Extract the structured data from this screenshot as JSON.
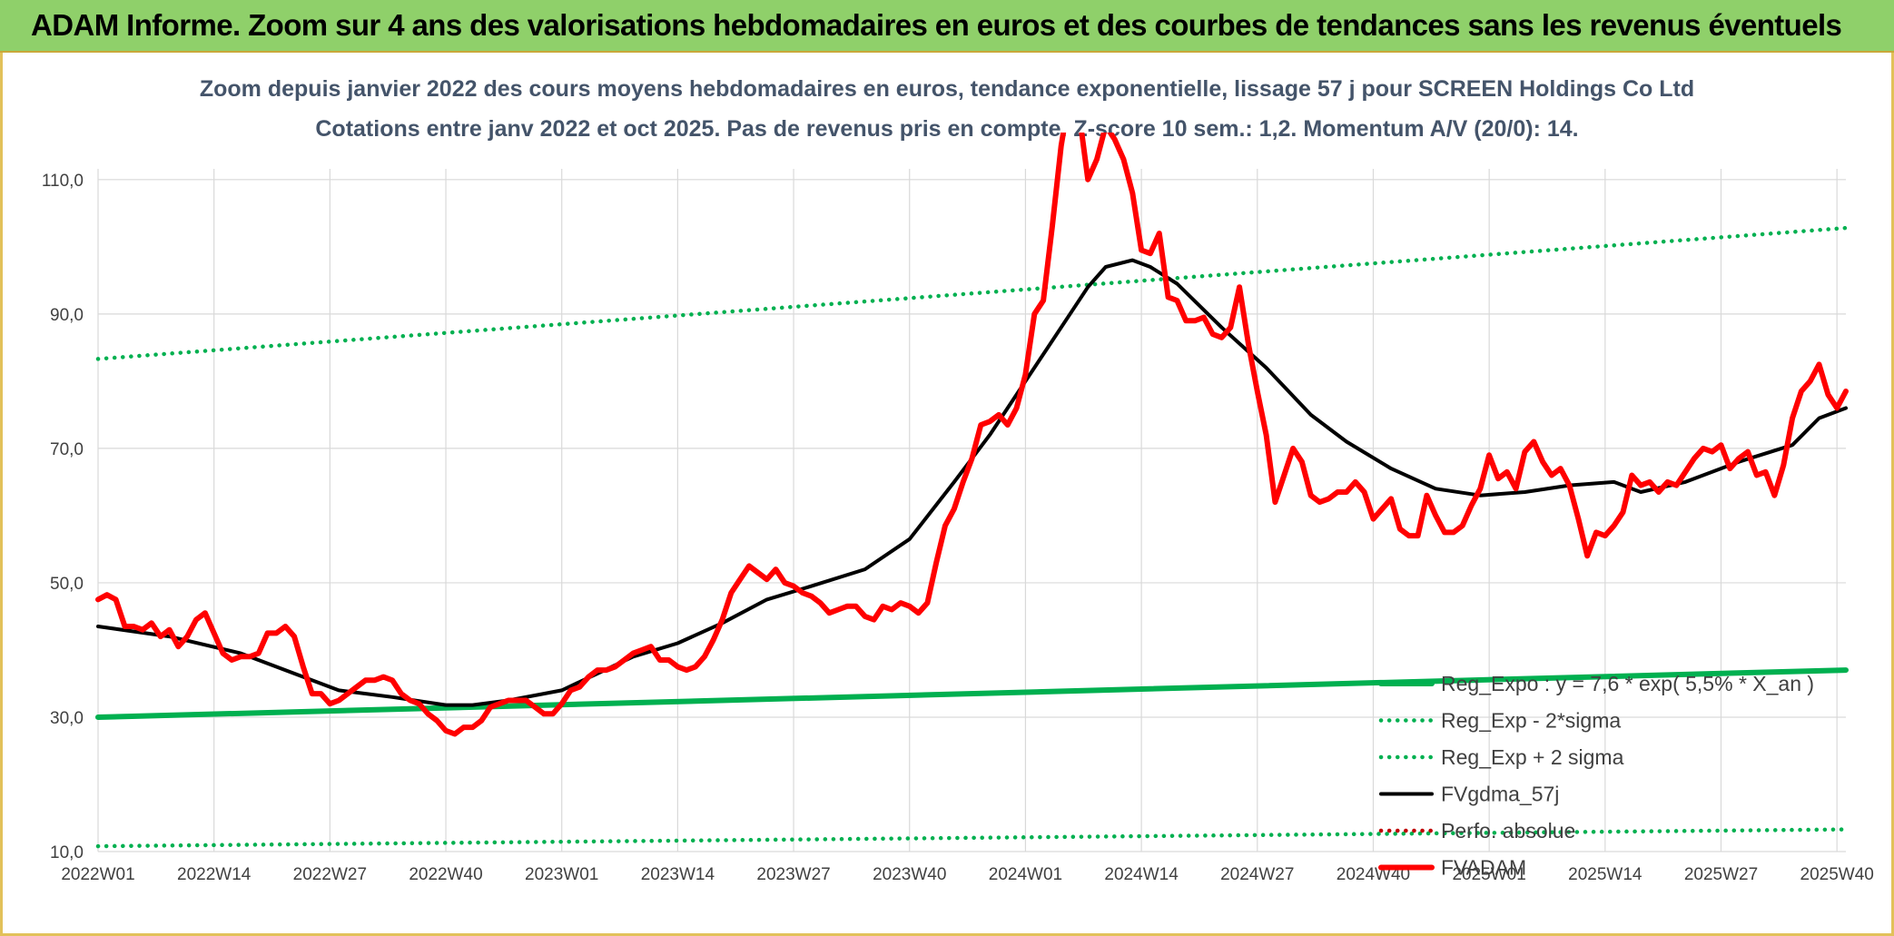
{
  "header": {
    "title": "ADAM Informe. Zoom sur 4 ans des valorisations hebdomadaires en euros et des courbes de tendances sans les revenus éventuels"
  },
  "colors": {
    "banner": "#8fd06a",
    "reg_expo": "#00b050",
    "sigma_bands": "#00b050",
    "fvgdma": "#000000",
    "fvadam": "#ff0000",
    "perfo": "#c00000",
    "grid": "#d9d9d9"
  },
  "chart_data": {
    "type": "line",
    "title_line1": "Zoom depuis janvier 2022 des cours moyens hebdomadaires en euros, tendance exponentielle, lissage 57 j pour SCREEN Holdings Co Ltd",
    "title_line2": "Cotations entre janv 2022 et oct 2025. Pas de revenus pris en compte. Z-score 10 sem.: 1,2. Momentum A/V (20/0): 14.",
    "xlabel": "",
    "ylabel": "",
    "ylim": [
      10,
      110
    ],
    "xlim": [
      0,
      196
    ],
    "y_ticks": [
      10,
      30,
      50,
      70,
      90,
      110
    ],
    "y_tick_labels": [
      "10,0",
      "30,0",
      "50,0",
      "70,0",
      "90,0",
      "110,0"
    ],
    "x_ticks": [
      0,
      13,
      26,
      39,
      52,
      65,
      78,
      91,
      104,
      117,
      130,
      143,
      156,
      169,
      182,
      195
    ],
    "x_tick_labels": [
      "2022W01",
      "2022W14",
      "2022W27",
      "2022W40",
      "2023W01",
      "2023W14",
      "2023W27",
      "2023W40",
      "2024W01",
      "2024W14",
      "2024W27",
      "2024W40",
      "2025W01",
      "2025W14",
      "2025W27",
      "2025W40"
    ],
    "series": [
      {
        "name": "Reg_Expo : y = 7,6 * exp( 5,5% *  X_an )",
        "style": "solid-thick",
        "color": "#00b050",
        "x": [
          0,
          196
        ],
        "values": [
          30.0,
          37.0
        ]
      },
      {
        "name": "Reg_Exp - 2*sigma",
        "style": "dotted",
        "color": "#00b050",
        "x": [
          0,
          196
        ],
        "values": [
          10.8,
          13.3
        ]
      },
      {
        "name": "Reg_Exp + 2 sigma",
        "style": "dotted",
        "color": "#00b050",
        "x": [
          0,
          196
        ],
        "values": [
          83.3,
          102.8
        ]
      },
      {
        "name": "FVgdma_57j",
        "style": "solid",
        "color": "#000000",
        "x": [
          0,
          8,
          16,
          22,
          27,
          33,
          39,
          42,
          46,
          52,
          56,
          60,
          65,
          70,
          75,
          80,
          86,
          91,
          96,
          100,
          104,
          108,
          111,
          113,
          116,
          118,
          121,
          126,
          131,
          136,
          140,
          145,
          150,
          155,
          160,
          165,
          170,
          173,
          178,
          184,
          190,
          193,
          196
        ],
        "values": [
          43.5,
          42.0,
          39.5,
          36.5,
          34.0,
          33.0,
          31.8,
          31.8,
          32.5,
          34.0,
          36.5,
          39.0,
          41.0,
          44.0,
          47.5,
          49.5,
          52.0,
          56.5,
          65.0,
          72.0,
          80.0,
          88.0,
          94.0,
          97.0,
          98.0,
          97.0,
          94.5,
          88.0,
          82.0,
          75.0,
          71.0,
          67.0,
          64.0,
          63.0,
          63.5,
          64.5,
          65.0,
          63.5,
          65.0,
          68.0,
          70.5,
          74.5,
          76.0
        ]
      },
      {
        "name": "Perfo. absolue",
        "style": "dotted",
        "color": "#c00000",
        "x": [],
        "values": []
      },
      {
        "name": "FVADAM",
        "style": "solid-thick",
        "color": "#ff0000",
        "x": [
          0,
          1,
          2,
          3,
          4,
          5,
          6,
          7,
          8,
          9,
          10,
          11,
          12,
          13,
          14,
          15,
          16,
          17,
          18,
          19,
          20,
          21,
          22,
          23,
          24,
          25,
          26,
          27,
          28,
          29,
          30,
          31,
          32,
          33,
          34,
          35,
          36,
          37,
          38,
          39,
          40,
          41,
          42,
          43,
          44,
          45,
          46,
          47,
          48,
          49,
          50,
          51,
          52,
          53,
          54,
          55,
          56,
          57,
          58,
          59,
          60,
          61,
          62,
          63,
          64,
          65,
          66,
          67,
          68,
          69,
          70,
          71,
          72,
          73,
          74,
          75,
          76,
          77,
          78,
          79,
          80,
          81,
          82,
          83,
          84,
          85,
          86,
          87,
          88,
          89,
          90,
          91,
          92,
          93,
          94,
          95,
          96,
          97,
          98,
          99,
          100,
          101,
          102,
          103,
          104,
          105,
          106,
          107,
          108,
          109,
          110,
          111,
          112,
          113,
          114,
          115,
          116,
          117,
          118,
          119,
          120,
          121,
          122,
          123,
          124,
          125,
          126,
          127,
          128,
          129,
          130,
          131,
          132,
          133,
          134,
          135,
          136,
          137,
          138,
          139,
          140,
          141,
          142,
          143,
          144,
          145,
          146,
          147,
          148,
          149,
          150,
          151,
          152,
          153,
          154,
          155,
          156,
          157,
          158,
          159,
          160,
          161,
          162,
          163,
          164,
          165,
          166,
          167,
          168,
          169,
          170,
          171,
          172,
          173,
          174,
          175,
          176,
          177,
          178,
          179,
          180,
          181,
          182,
          183,
          184,
          185,
          186,
          187,
          188,
          189,
          190,
          191,
          192,
          193,
          194,
          195,
          196
        ],
        "values": [
          47.5,
          48.2,
          47.5,
          43.5,
          43.5,
          43.0,
          44.0,
          42.0,
          43.0,
          40.5,
          42.0,
          44.5,
          45.5,
          42.5,
          39.5,
          38.5,
          39.0,
          39.0,
          39.5,
          42.5,
          42.5,
          43.5,
          42.0,
          37.5,
          33.5,
          33.5,
          32.0,
          32.5,
          33.5,
          34.5,
          35.5,
          35.5,
          36.0,
          35.5,
          33.5,
          32.5,
          32.0,
          30.5,
          29.5,
          28.0,
          27.5,
          28.5,
          28.5,
          29.5,
          31.5,
          32.0,
          32.5,
          32.5,
          32.5,
          31.5,
          30.5,
          30.5,
          32.0,
          34.0,
          34.5,
          36.0,
          37.0,
          37.0,
          37.5,
          38.5,
          39.5,
          40.0,
          40.5,
          38.5,
          38.5,
          37.5,
          37.0,
          37.5,
          39.0,
          41.5,
          44.5,
          48.5,
          50.5,
          52.5,
          51.5,
          50.5,
          52.0,
          50.0,
          49.5,
          48.5,
          48.0,
          47.0,
          45.5,
          46.0,
          46.5,
          46.5,
          45.0,
          44.5,
          46.5,
          46.0,
          47.0,
          46.5,
          45.5,
          47.0,
          53.0,
          58.5,
          61.0,
          65.0,
          68.5,
          73.5,
          74.0,
          75.0,
          73.5,
          76.0,
          81.0,
          90.0,
          92.0,
          103.0,
          115.0,
          123.0,
          120.0,
          110.0,
          113.0,
          118.0,
          116.0,
          113.0,
          108.0,
          99.5,
          99.0,
          102.0,
          92.5,
          92.0,
          89.0,
          89.0,
          89.5,
          87.0,
          86.5,
          88.0,
          94.0,
          85.5,
          78.5,
          72.0,
          62.0,
          66.0,
          70.0,
          68.0,
          63.0,
          62.0,
          62.5,
          63.5,
          63.5,
          65.0,
          63.5,
          59.5,
          61.0,
          62.5,
          58.0,
          57.0,
          57.0,
          63.0,
          60.0,
          57.5,
          57.5,
          58.5,
          61.5,
          64.0,
          69.0,
          65.5,
          66.5,
          64.0,
          69.5,
          71.0,
          68.0,
          66.0,
          67.0,
          64.5,
          59.5,
          54.0,
          57.5,
          57.0,
          58.5,
          60.5,
          66.0,
          64.5,
          65.0,
          63.5,
          65.0,
          64.5,
          66.5,
          68.5,
          70.0,
          69.5,
          70.5,
          67.0,
          68.5,
          69.5,
          66.0,
          66.5,
          63.0,
          67.5,
          74.5,
          78.5,
          80.0,
          82.5,
          78.0,
          76.0,
          78.5
        ]
      }
    ],
    "legend": {
      "placement": "lower-right",
      "entries": [
        "Reg_Expo : y = 7,6 * exp( 5,5% *  X_an )",
        "Reg_Exp - 2*sigma",
        "Reg_Exp + 2 sigma",
        "FVgdma_57j",
        "Perfo. absolue",
        "FVADAM"
      ]
    },
    "grid": true
  }
}
